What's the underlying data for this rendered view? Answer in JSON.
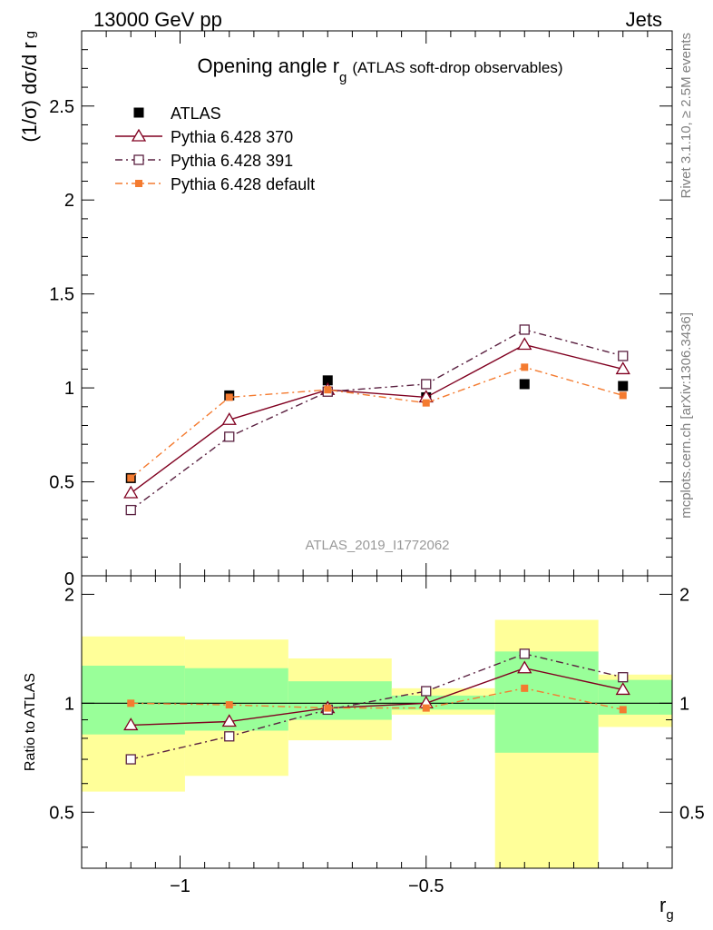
{
  "header": {
    "energy_label": "13000 GeV pp",
    "category_label": "Jets"
  },
  "side_labels": {
    "rivet": "Rivet 3.1.10, ≥ 2.5M events",
    "mcplots": "mcplots.cern.ch [arXiv:1306.3436]"
  },
  "watermark": "ATLAS_2019_I1772062",
  "chart_data": [
    {
      "type": "scatter",
      "title": "Opening angle r",
      "title_sub": "g",
      "title_suffix": "(ATLAS soft-drop observables)",
      "ylabel": "(1/σ) dσ/d r",
      "ylabel_sub": "g",
      "xlabel": "r",
      "xlabel_sub": "g",
      "xlim": [
        -1.2,
        0.0
      ],
      "ylim": [
        0,
        2.9
      ],
      "y_ticks": [
        0.5,
        1,
        1.5,
        2,
        2.5
      ],
      "y_tick_labels": [
        "0.5",
        "1",
        "1.5",
        "2",
        "2.5"
      ],
      "y_zero_label": "0",
      "bin_edges": [
        -1.2,
        -0.99,
        -0.78,
        -0.57,
        -0.36,
        -0.15,
        0.0
      ],
      "x": [
        -1.1,
        -0.9,
        -0.7,
        -0.5,
        -0.3,
        -0.1
      ],
      "legend_position": "top-left",
      "series": [
        {
          "name": "ATLAS",
          "marker": "filled-square",
          "color": "#000000",
          "values": [
            0.52,
            0.96,
            1.04,
            0.95,
            1.02,
            1.01
          ]
        },
        {
          "name": "Pythia 6.428 370",
          "marker": "open-triangle",
          "line": "solid",
          "color": "#800020",
          "values": [
            0.44,
            0.83,
            0.99,
            0.95,
            1.23,
            1.1
          ]
        },
        {
          "name": "Pythia 6.428 391",
          "marker": "open-square",
          "line": "dashdot",
          "color": "#5a2040",
          "values": [
            0.35,
            0.74,
            0.98,
            1.02,
            1.31,
            1.17
          ]
        },
        {
          "name": "Pythia 6.428 default",
          "marker": "small-filled-square",
          "line": "dashdot",
          "color": "#f47b30",
          "values": [
            0.52,
            0.95,
            0.99,
            0.92,
            1.11,
            0.96
          ]
        }
      ]
    },
    {
      "type": "scatter",
      "ylabel": "Ratio to ATLAS",
      "xlim": [
        -1.2,
        0.0
      ],
      "ylim": [
        0.35,
        2.25
      ],
      "y_ticks": [
        0.5,
        1,
        2
      ],
      "y_tick_labels": [
        "0.5",
        "1",
        "2"
      ],
      "x_ticks": [
        -1,
        -0.5
      ],
      "x_tick_labels": [
        "−1",
        "−0.5"
      ],
      "band_colors": {
        "stat": "#99ff99",
        "total": "#ffff99"
      },
      "bands": [
        {
          "x0": -1.2,
          "x1": -0.99,
          "inner_lo": 0.82,
          "inner_hi": 1.27,
          "outer_lo": 0.57,
          "outer_hi": 1.53
        },
        {
          "x0": -0.99,
          "x1": -0.78,
          "inner_lo": 0.84,
          "inner_hi": 1.25,
          "outer_lo": 0.63,
          "outer_hi": 1.5
        },
        {
          "x0": -0.78,
          "x1": -0.57,
          "inner_lo": 0.9,
          "inner_hi": 1.15,
          "outer_lo": 0.79,
          "outer_hi": 1.33
        },
        {
          "x0": -0.57,
          "x1": -0.36,
          "inner_lo": 0.96,
          "inner_hi": 1.05,
          "outer_lo": 0.93,
          "outer_hi": 1.1
        },
        {
          "x0": -0.36,
          "x1": -0.15,
          "inner_lo": 0.73,
          "inner_hi": 1.39,
          "outer_lo": 0.35,
          "outer_hi": 1.7
        },
        {
          "x0": -0.15,
          "x1": 0.0,
          "inner_lo": 0.93,
          "inner_hi": 1.16,
          "outer_lo": 0.86,
          "outer_hi": 1.2
        }
      ],
      "series": [
        {
          "name": "Pythia 6.428 370",
          "values": [
            0.87,
            0.89,
            0.97,
            1.0,
            1.25,
            1.09
          ]
        },
        {
          "name": "Pythia 6.428 391",
          "values": [
            0.7,
            0.81,
            0.96,
            1.08,
            1.37,
            1.18
          ]
        },
        {
          "name": "Pythia 6.428 default",
          "values": [
            1.0,
            0.99,
            0.97,
            0.97,
            1.1,
            0.96
          ]
        }
      ]
    }
  ]
}
